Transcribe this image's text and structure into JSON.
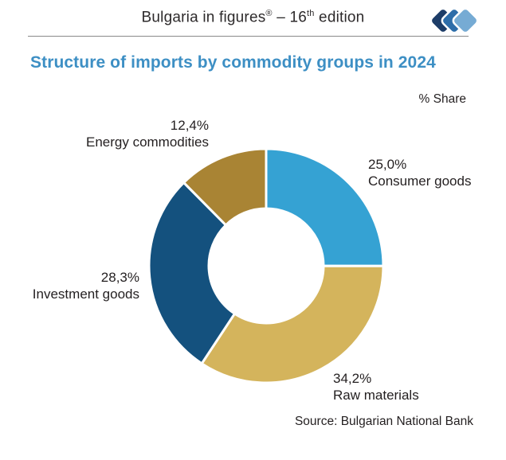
{
  "header": {
    "title_part1": "Bulgaria in figures",
    "title_reg": "®",
    "title_part2": " – 16",
    "title_sup": "th",
    "title_part3": " edition",
    "logo_colors": [
      "#1d3d68",
      "#2d6da9",
      "#76abd4"
    ]
  },
  "page": {
    "title": "Structure of imports by commodity groups in 2024",
    "title_color": "#3d8fc4",
    "unit_label": "% Share",
    "source": "Source: Bulgarian National Bank"
  },
  "chart_data": {
    "type": "pie",
    "subtype": "donut",
    "title": "Structure of imports by commodity groups in 2024",
    "unit": "% Share",
    "start_angle_deg": 0,
    "direction": "clockwise",
    "inner_radius_ratio": 0.49,
    "categories": [
      "Consumer goods",
      "Raw materials",
      "Investment goods",
      "Energy commodities"
    ],
    "values": [
      25.0,
      34.2,
      28.3,
      12.4
    ],
    "value_labels": [
      "25,0%",
      "34,2%",
      "28,3%",
      "12,4%"
    ],
    "colors": [
      "#35a2d3",
      "#d4b45c",
      "#14517e",
      "#a98434"
    ],
    "separator_color": "#ffffff",
    "source": "Source: Bulgarian National Bank"
  },
  "callouts": {
    "energy": {
      "value": "12,4%",
      "name": "Energy commodities"
    },
    "consumer": {
      "value": "25,0%",
      "name": "Consumer goods"
    },
    "investment": {
      "value": "28,3%",
      "name": "Investment goods"
    },
    "raw": {
      "value": "34,2%",
      "name": "Raw materials"
    }
  }
}
